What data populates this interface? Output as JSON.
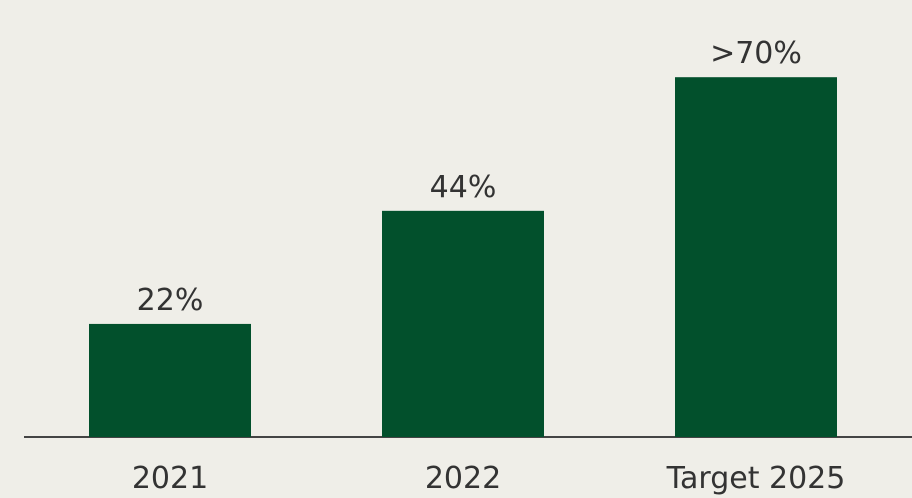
{
  "chart_data": {
    "type": "bar",
    "categories": [
      "2021",
      "2022",
      "Target 2025"
    ],
    "values": [
      22,
      44,
      70
    ],
    "value_labels": [
      "22%",
      "44%",
      ">70%"
    ],
    "color": "#02502c"
  }
}
